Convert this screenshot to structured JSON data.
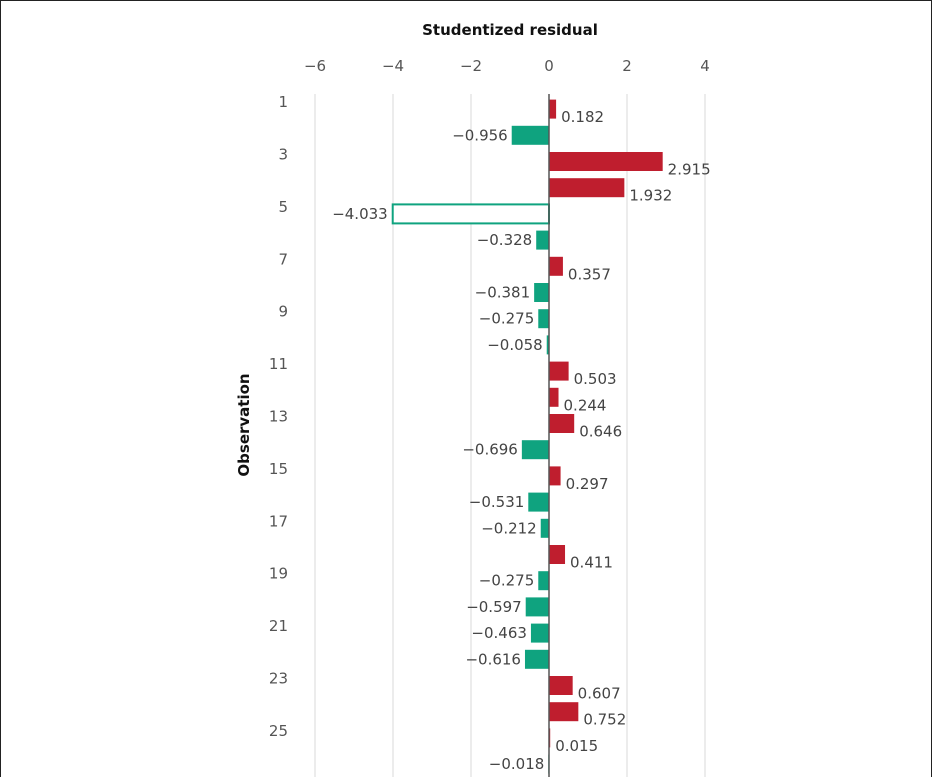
{
  "chart_data": {
    "type": "bar",
    "orientation": "horizontal",
    "xlabel": "Studentized residual",
    "ylabel": "Observation",
    "xlim": [
      -6,
      5
    ],
    "xticks": [
      -6,
      -4,
      -2,
      0,
      2,
      4
    ],
    "xtick_labels": [
      "−6",
      "−4",
      "−2",
      "0",
      "2",
      "4"
    ],
    "grid": true,
    "positive_color": "#bf1e2e",
    "negative_color": "#0fa37f",
    "outlier_fill": "#ffffff",
    "outlier_stroke": "#0fa37f",
    "observations": [
      1,
      2,
      3,
      4,
      5,
      6,
      7,
      8,
      9,
      10,
      11,
      12,
      13,
      14,
      15,
      16,
      17,
      18,
      19,
      20,
      21,
      22,
      23,
      24,
      25,
      26
    ],
    "ytick_labels": [
      "1",
      "",
      "3",
      "",
      "5",
      "",
      "7",
      "",
      "9",
      "",
      "11",
      "",
      "13",
      "",
      "15",
      "",
      "17",
      "",
      "19",
      "",
      "21",
      "",
      "23",
      "",
      "25",
      ""
    ],
    "values": [
      0.182,
      -0.956,
      2.915,
      1.932,
      -4.033,
      -0.328,
      0.357,
      -0.381,
      -0.275,
      -0.058,
      0.503,
      0.244,
      0.646,
      -0.696,
      0.297,
      -0.531,
      -0.212,
      0.411,
      -0.275,
      -0.597,
      -0.463,
      -0.616,
      0.607,
      0.752,
      0.015,
      -0.018
    ],
    "value_labels": [
      "0.182",
      "−0.956",
      "2.915",
      "1.932",
      "−4.033",
      "−0.328",
      "0.357",
      "−0.381",
      "−0.275",
      "−0.058",
      "0.503",
      "0.244",
      "0.646",
      "−0.696",
      "0.297",
      "−0.531",
      "−0.212",
      "0.411",
      "−0.275",
      "−0.597",
      "−0.463",
      "−0.616",
      "0.607",
      "0.752",
      "0.015",
      "−0.018"
    ],
    "outliers": [
      5
    ]
  }
}
